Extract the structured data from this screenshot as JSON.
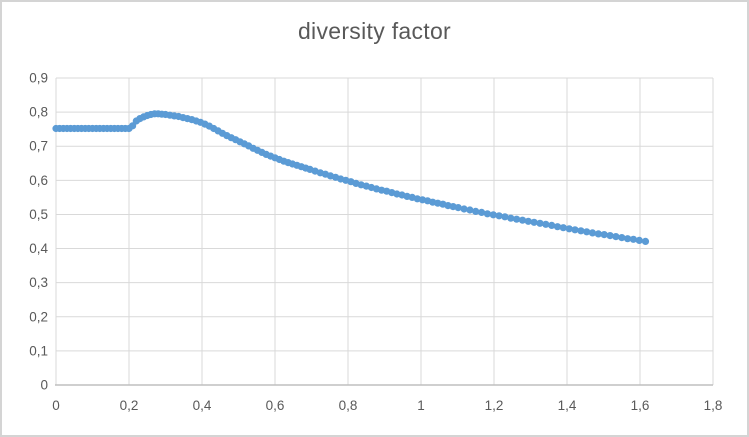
{
  "chart": {
    "title": "diversity factor"
  },
  "colors": {
    "accent": "#5B9BD5",
    "grid": "#D9D9D9",
    "axis": "#BFBFBF",
    "text": "#595959",
    "title_text": "#595959",
    "border": "#D4D4D4",
    "background": "#FFFFFF"
  },
  "chart_data": {
    "type": "scatter",
    "title": "diversity factor",
    "xlabel": "",
    "ylabel": "",
    "xlim": [
      0,
      1.8
    ],
    "ylim": [
      0,
      0.9
    ],
    "grid": true,
    "legend": false,
    "marker_diameter_px": 7.2,
    "x_ticks": [
      0,
      0.2,
      0.4,
      0.6,
      0.8,
      1,
      1.2,
      1.4,
      1.6,
      1.8
    ],
    "x_tick_labels": [
      "0",
      "0,2",
      "0,4",
      "0,6",
      "0,8",
      "1",
      "1,2",
      "1,4",
      "1,6",
      "1,8"
    ],
    "y_ticks": [
      0,
      0.1,
      0.2,
      0.3,
      0.4,
      0.5,
      0.6,
      0.7,
      0.8,
      0.9
    ],
    "y_tick_labels": [
      "0",
      "0,1",
      "0,2",
      "0,3",
      "0,4",
      "0,5",
      "0,6",
      "0,7",
      "0,8",
      "0,9"
    ],
    "series": [
      {
        "name": "diversity factor",
        "points": [
          [
            0,
            0.752
          ],
          [
            0.01,
            0.752
          ],
          [
            0.02,
            0.752
          ],
          [
            0.03,
            0.752
          ],
          [
            0.04,
            0.752
          ],
          [
            0.05,
            0.752
          ],
          [
            0.06,
            0.752
          ],
          [
            0.07,
            0.752
          ],
          [
            0.08,
            0.752
          ],
          [
            0.09,
            0.752
          ],
          [
            0.1,
            0.752
          ],
          [
            0.11,
            0.752
          ],
          [
            0.12,
            0.752
          ],
          [
            0.13,
            0.752
          ],
          [
            0.14,
            0.752
          ],
          [
            0.15,
            0.752
          ],
          [
            0.16,
            0.752
          ],
          [
            0.17,
            0.752
          ],
          [
            0.18,
            0.752
          ],
          [
            0.19,
            0.752
          ],
          [
            0.2,
            0.752
          ],
          [
            0.21,
            0.76
          ],
          [
            0.22,
            0.774
          ],
          [
            0.23,
            0.781
          ],
          [
            0.24,
            0.786
          ],
          [
            0.25,
            0.79
          ],
          [
            0.26,
            0.793
          ],
          [
            0.27,
            0.795
          ],
          [
            0.28,
            0.795
          ],
          [
            0.29,
            0.794
          ],
          [
            0.3,
            0.793
          ],
          [
            0.312,
            0.791
          ],
          [
            0.324,
            0.789
          ],
          [
            0.336,
            0.787
          ],
          [
            0.348,
            0.784
          ],
          [
            0.36,
            0.781
          ],
          [
            0.372,
            0.778
          ],
          [
            0.384,
            0.774
          ],
          [
            0.396,
            0.77
          ],
          [
            0.408,
            0.765
          ],
          [
            0.42,
            0.759
          ],
          [
            0.432,
            0.752
          ],
          [
            0.444,
            0.745
          ],
          [
            0.456,
            0.738
          ],
          [
            0.468,
            0.731
          ],
          [
            0.48,
            0.725
          ],
          [
            0.492,
            0.719
          ],
          [
            0.504,
            0.713
          ],
          [
            0.516,
            0.707
          ],
          [
            0.528,
            0.701
          ],
          [
            0.54,
            0.694
          ],
          [
            0.552,
            0.688
          ],
          [
            0.564,
            0.682
          ],
          [
            0.576,
            0.676
          ],
          [
            0.588,
            0.671
          ],
          [
            0.6,
            0.666
          ],
          [
            0.612,
            0.661
          ],
          [
            0.624,
            0.656
          ],
          [
            0.636,
            0.652
          ],
          [
            0.648,
            0.648
          ],
          [
            0.66,
            0.644
          ],
          [
            0.672,
            0.64
          ],
          [
            0.684,
            0.636
          ],
          [
            0.696,
            0.632
          ],
          [
            0.71,
            0.627
          ],
          [
            0.724,
            0.622
          ],
          [
            0.738,
            0.618
          ],
          [
            0.752,
            0.613
          ],
          [
            0.766,
            0.609
          ],
          [
            0.78,
            0.604
          ],
          [
            0.794,
            0.6
          ],
          [
            0.808,
            0.596
          ],
          [
            0.822,
            0.591
          ],
          [
            0.836,
            0.587
          ],
          [
            0.85,
            0.583
          ],
          [
            0.864,
            0.579
          ],
          [
            0.878,
            0.575
          ],
          [
            0.892,
            0.571
          ],
          [
            0.906,
            0.568
          ],
          [
            0.92,
            0.564
          ],
          [
            0.934,
            0.56
          ],
          [
            0.948,
            0.557
          ],
          [
            0.962,
            0.553
          ],
          [
            0.976,
            0.55
          ],
          [
            0.99,
            0.546
          ],
          [
            1.004,
            0.543
          ],
          [
            1.018,
            0.54
          ],
          [
            1.032,
            0.536
          ],
          [
            1.046,
            0.533
          ],
          [
            1.06,
            0.53
          ],
          [
            1.074,
            0.526
          ],
          [
            1.088,
            0.523
          ],
          [
            1.102,
            0.52
          ],
          [
            1.118,
            0.516
          ],
          [
            1.134,
            0.513
          ],
          [
            1.15,
            0.509
          ],
          [
            1.166,
            0.506
          ],
          [
            1.182,
            0.502
          ],
          [
            1.198,
            0.499
          ],
          [
            1.214,
            0.496
          ],
          [
            1.23,
            0.493
          ],
          [
            1.246,
            0.489
          ],
          [
            1.262,
            0.486
          ],
          [
            1.278,
            0.483
          ],
          [
            1.294,
            0.48
          ],
          [
            1.31,
            0.477
          ],
          [
            1.326,
            0.474
          ],
          [
            1.342,
            0.471
          ],
          [
            1.358,
            0.468
          ],
          [
            1.374,
            0.464
          ],
          [
            1.39,
            0.461
          ],
          [
            1.406,
            0.458
          ],
          [
            1.422,
            0.455
          ],
          [
            1.438,
            0.452
          ],
          [
            1.454,
            0.449
          ],
          [
            1.47,
            0.446
          ],
          [
            1.486,
            0.443
          ],
          [
            1.502,
            0.441
          ],
          [
            1.518,
            0.438
          ],
          [
            1.534,
            0.435
          ],
          [
            1.55,
            0.432
          ],
          [
            1.566,
            0.429
          ],
          [
            1.582,
            0.427
          ],
          [
            1.598,
            0.424
          ],
          [
            1.615,
            0.421
          ]
        ]
      }
    ]
  }
}
